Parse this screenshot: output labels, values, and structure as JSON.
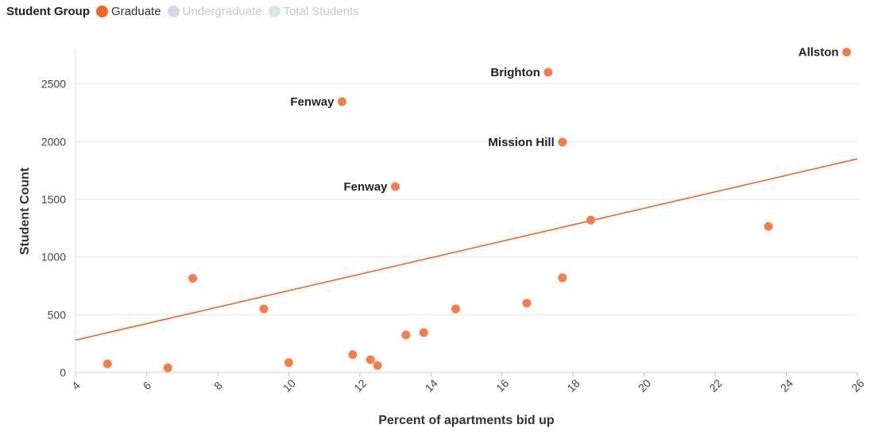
{
  "legend": {
    "title": "Student Group",
    "items": [
      {
        "label": "Graduate",
        "color": "#f26522",
        "active": true
      },
      {
        "label": "Undergraduate",
        "color": "#d0d9e4",
        "active": false
      },
      {
        "label": "Total Students",
        "color": "#d4e9e2",
        "active": false
      }
    ]
  },
  "chart_data": {
    "type": "scatter",
    "xlabel": "Percent of apartments bid up",
    "ylabel": "Student Count",
    "xlim": [
      4,
      26
    ],
    "ylim": [
      0,
      2800
    ],
    "xticks": [
      4,
      6,
      8,
      10,
      12,
      14,
      16,
      18,
      20,
      22,
      24,
      26
    ],
    "yticks": [
      0,
      500,
      1000,
      1500,
      2000,
      2500
    ],
    "grid": "horizontal",
    "point_color": "#f47d4a",
    "line_color": "#f26522",
    "series": [
      {
        "name": "Graduate",
        "points": [
          {
            "x": 4.9,
            "y": 75,
            "label": ""
          },
          {
            "x": 6.6,
            "y": 40,
            "label": ""
          },
          {
            "x": 7.3,
            "y": 815,
            "label": ""
          },
          {
            "x": 9.3,
            "y": 550,
            "label": ""
          },
          {
            "x": 10.0,
            "y": 85,
            "label": ""
          },
          {
            "x": 11.5,
            "y": 2345,
            "label": "Fenway"
          },
          {
            "x": 11.8,
            "y": 155,
            "label": ""
          },
          {
            "x": 12.3,
            "y": 110,
            "label": ""
          },
          {
            "x": 12.5,
            "y": 60,
            "label": ""
          },
          {
            "x": 13.0,
            "y": 1610,
            "label": "Fenway"
          },
          {
            "x": 13.3,
            "y": 325,
            "label": ""
          },
          {
            "x": 13.8,
            "y": 345,
            "label": ""
          },
          {
            "x": 14.7,
            "y": 550,
            "label": ""
          },
          {
            "x": 16.7,
            "y": 600,
            "label": ""
          },
          {
            "x": 17.3,
            "y": 2600,
            "label": "Brighton"
          },
          {
            "x": 17.7,
            "y": 1995,
            "label": "Mission Hill"
          },
          {
            "x": 17.7,
            "y": 820,
            "label": ""
          },
          {
            "x": 18.5,
            "y": 1320,
            "label": ""
          },
          {
            "x": 23.5,
            "y": 1265,
            "label": ""
          },
          {
            "x": 25.7,
            "y": 2775,
            "label": "Allston"
          }
        ]
      }
    ],
    "trendline": {
      "x": [
        4,
        26
      ],
      "y": [
        280,
        1850
      ]
    }
  }
}
